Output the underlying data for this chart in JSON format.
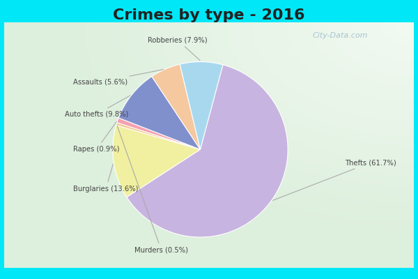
{
  "title": "Crimes by type - 2016",
  "title_fontsize": 16,
  "title_fontweight": "bold",
  "labels": [
    "Thefts",
    "Burglaries",
    "Murders",
    "Rapes",
    "Auto thefts",
    "Assaults",
    "Robberies"
  ],
  "values": [
    61.7,
    13.6,
    0.5,
    0.9,
    9.8,
    5.6,
    7.9
  ],
  "colors": [
    "#c8b4e0",
    "#f0f0a0",
    "#f5c890",
    "#f5a0b0",
    "#8090cc",
    "#f5c8a0",
    "#a8d8ee"
  ],
  "label_format": [
    "Thefts (61.7%)",
    "Burglaries (13.6%)",
    "Murders (0.5%)",
    "Rapes (0.9%)",
    "Auto thefts (9.8%)",
    "Assaults (5.6%)",
    "Robberies (7.9%)"
  ],
  "border_color": "#00e8f8",
  "inner_bg_color": "#e0f0e8",
  "startangle": 75,
  "watermark": "City-Data.com",
  "label_color": "#444444",
  "line_color": "#aaaaaa"
}
